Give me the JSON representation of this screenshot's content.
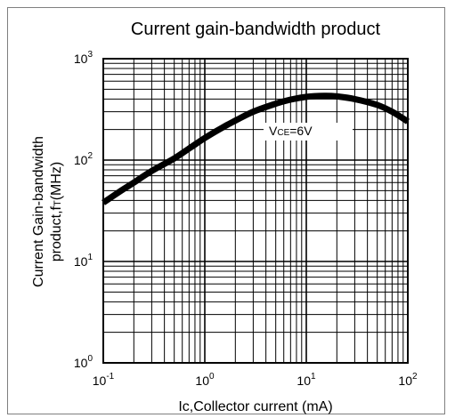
{
  "chart_data": {
    "type": "line",
    "title": "Current gain-bandwidth product",
    "xlabel": "Ic,Collector current  (mA)",
    "ylabel_line1": "Current Gain-bandwidth",
    "ylabel_line2_prefix": "product,f",
    "ylabel_line2_sub": "T",
    "ylabel_line2_suffix": "(MHz)",
    "x_scale": "log",
    "y_scale": "log",
    "xlim": [
      0.1,
      100
    ],
    "ylim": [
      1,
      1000
    ],
    "grid": true,
    "x_ticks": [
      {
        "base": "10",
        "exp": "-1",
        "value": 0.1
      },
      {
        "base": "10",
        "exp": "0",
        "value": 1
      },
      {
        "base": "10",
        "exp": "1",
        "value": 10
      },
      {
        "base": "10",
        "exp": "2",
        "value": 100
      }
    ],
    "y_ticks": [
      {
        "base": "10",
        "exp": "0",
        "value": 1
      },
      {
        "base": "10",
        "exp": "1",
        "value": 10
      },
      {
        "base": "10",
        "exp": "2",
        "value": 100
      },
      {
        "base": "10",
        "exp": "3",
        "value": 1000
      }
    ],
    "annotation": {
      "main": "V",
      "sub": "CE",
      "rest": "=6V"
    },
    "series": [
      {
        "x": [
          0.1,
          0.15,
          0.2,
          0.3,
          0.5,
          0.7,
          1,
          1.5,
          2,
          3,
          5,
          7,
          10,
          15,
          20,
          30,
          50,
          70,
          100
        ],
        "y": [
          38,
          50,
          60,
          78,
          104,
          130,
          165,
          210,
          245,
          300,
          360,
          395,
          420,
          430,
          425,
          400,
          350,
          300,
          240
        ]
      }
    ],
    "colors": {
      "line": "#000000",
      "grid": "#000000",
      "frame": "#7f7f7f"
    }
  }
}
